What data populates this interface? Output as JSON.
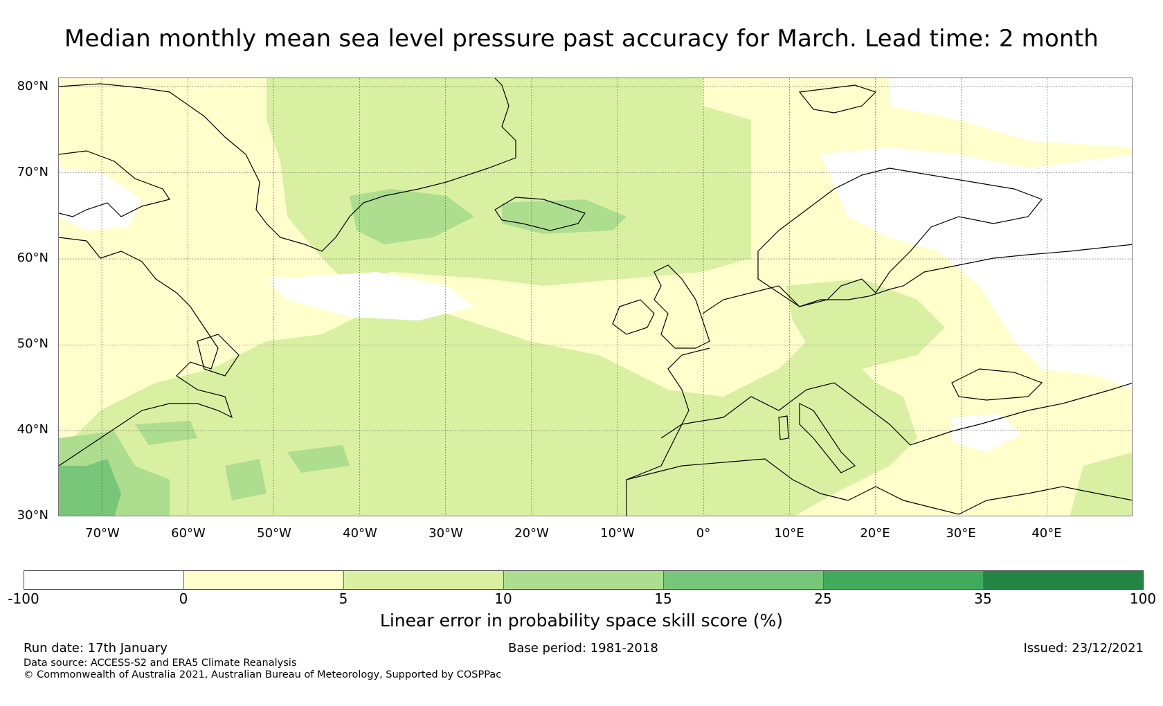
{
  "title": "Median monthly mean sea level pressure past accuracy for March. Lead time: 2 month",
  "map": {
    "lat_labels": [
      "80°N",
      "70°N",
      "60°N",
      "50°N",
      "40°N",
      "30°N"
    ],
    "lon_labels": [
      "70°W",
      "60°W",
      "50°W",
      "40°W",
      "30°W",
      "20°W",
      "10°W",
      "0°",
      "10°E",
      "20°E",
      "30°E",
      "40°E"
    ],
    "lat_values": [
      80,
      70,
      60,
      50,
      40,
      30
    ],
    "lon_values": [
      -70,
      -60,
      -50,
      -40,
      -30,
      -20,
      -10,
      0,
      10,
      20,
      30,
      40
    ],
    "extent": {
      "lon_min": -75,
      "lon_max": 50,
      "lat_min": 30,
      "lat_max": 81
    }
  },
  "colorbar": {
    "ticks": [
      "-100",
      "0",
      "5",
      "10",
      "15",
      "25",
      "35",
      "100"
    ],
    "colors": [
      "#ffffff",
      "#ffffcc",
      "#d9f0a3",
      "#addd8e",
      "#78c679",
      "#41ab5d",
      "#238443"
    ],
    "label": "Linear error in probability space skill score (%)"
  },
  "footer": {
    "run_date": "Run date: 17th January",
    "base_period": "Base period: 1981-2018",
    "issued": "Issued: 23/12/2021",
    "data_source": "Data source: ACCESS-S2 and ERA5 Climate Reanalysis",
    "copyright": "© Commonwealth of Australia 2021, Australian Bureau of Meteorology, Supported by COSPPac"
  }
}
